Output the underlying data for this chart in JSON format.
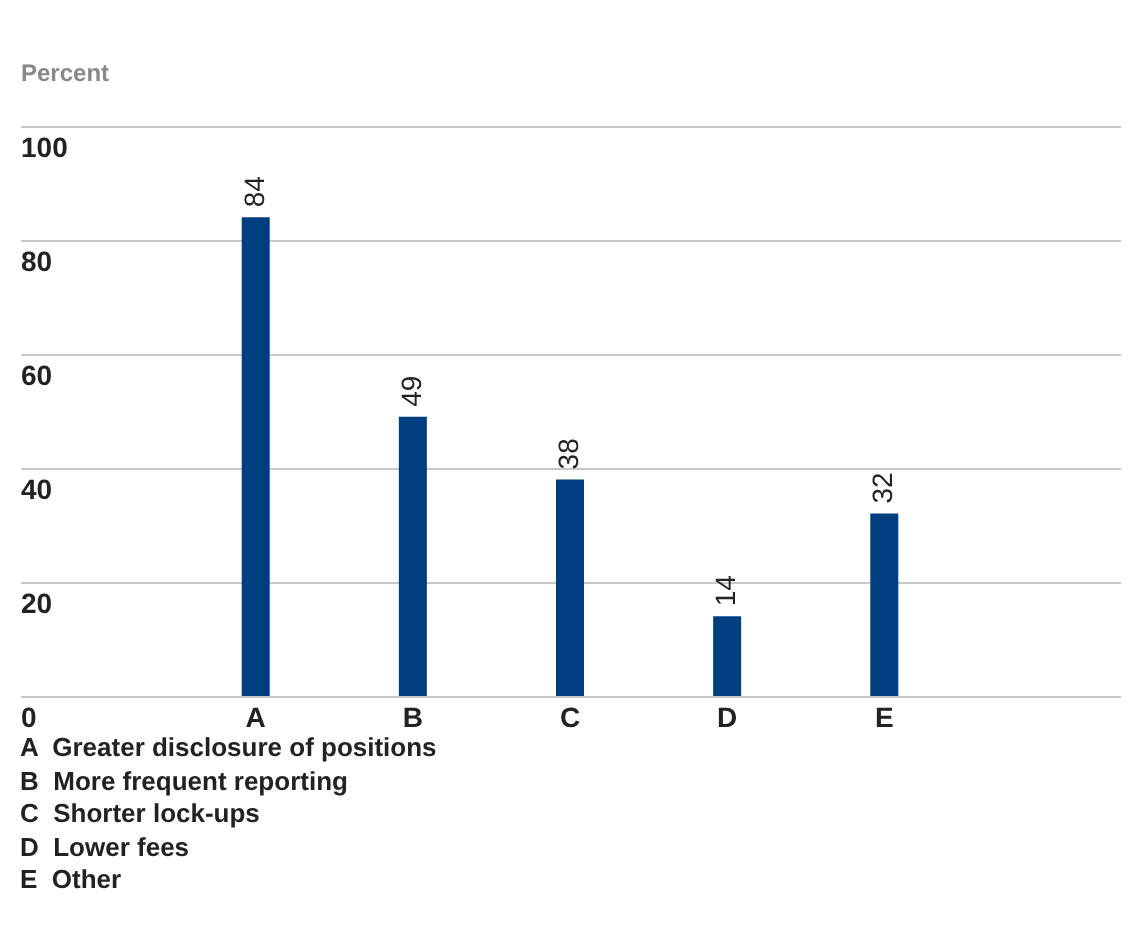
{
  "chart_data": {
    "type": "bar",
    "ylabel": "Percent",
    "categories": [
      "A",
      "B",
      "C",
      "D",
      "E"
    ],
    "values": [
      84,
      49,
      38,
      14,
      32
    ],
    "color": "#003f7f",
    "ylim": [
      0,
      100
    ],
    "yticks": [
      0,
      20,
      40,
      60,
      80,
      100
    ],
    "grid": "y",
    "data_labels": true,
    "annotations": [
      "A  Greater disclosure of positions",
      "B  More frequent reporting",
      "C  Shorter lock-ups",
      "D  Lower fees",
      "E  Other"
    ]
  }
}
